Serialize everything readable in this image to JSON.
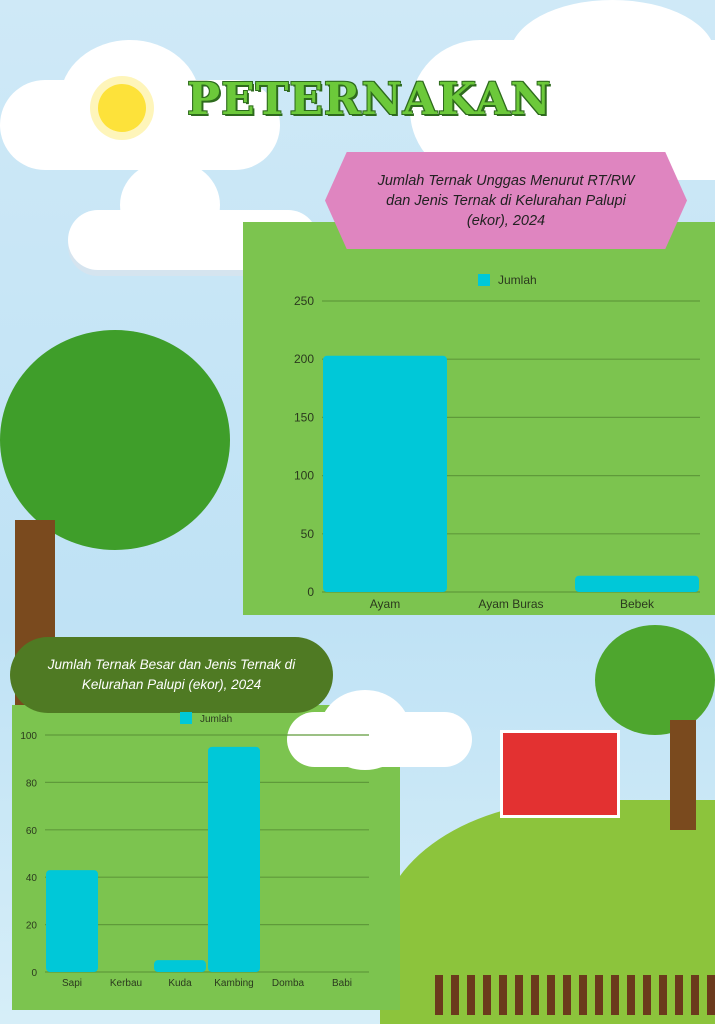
{
  "title": "PETERNAKAN",
  "colors": {
    "bar": "#00c8d8",
    "panel": "#7cc44f",
    "hex": "#df85c0",
    "pill": "#4f7a23",
    "title": "#6cc93a"
  },
  "chart_data": [
    {
      "type": "bar",
      "title": "Jumlah Ternak Unggas Menurut RT/RW dan Jenis Ternak di Kelurahan Palupi (ekor), 2024",
      "categories": [
        "Ayam",
        "Ayam Buras",
        "Bebek"
      ],
      "series": [
        {
          "name": "Jumlah",
          "values": [
            203,
            0,
            14
          ]
        }
      ],
      "yticks": [
        "0",
        "50",
        "100",
        "150",
        "200",
        "250"
      ],
      "ylim": [
        0,
        250
      ],
      "grid": true,
      "legend": "top"
    },
    {
      "type": "bar",
      "title": "Jumlah Ternak Besar dan Jenis Ternak di Kelurahan Palupi (ekor), 2024",
      "categories": [
        "Sapi",
        "Kerbau",
        "Kuda",
        "Kambing",
        "Domba",
        "Babi"
      ],
      "series": [
        {
          "name": "Jumlah",
          "values": [
            43,
            0,
            5,
            95,
            0,
            0
          ]
        }
      ],
      "yticks": [
        "0",
        "20",
        "40",
        "60",
        "80",
        "100"
      ],
      "ylim": [
        0,
        100
      ],
      "grid": true,
      "legend": "top"
    }
  ]
}
